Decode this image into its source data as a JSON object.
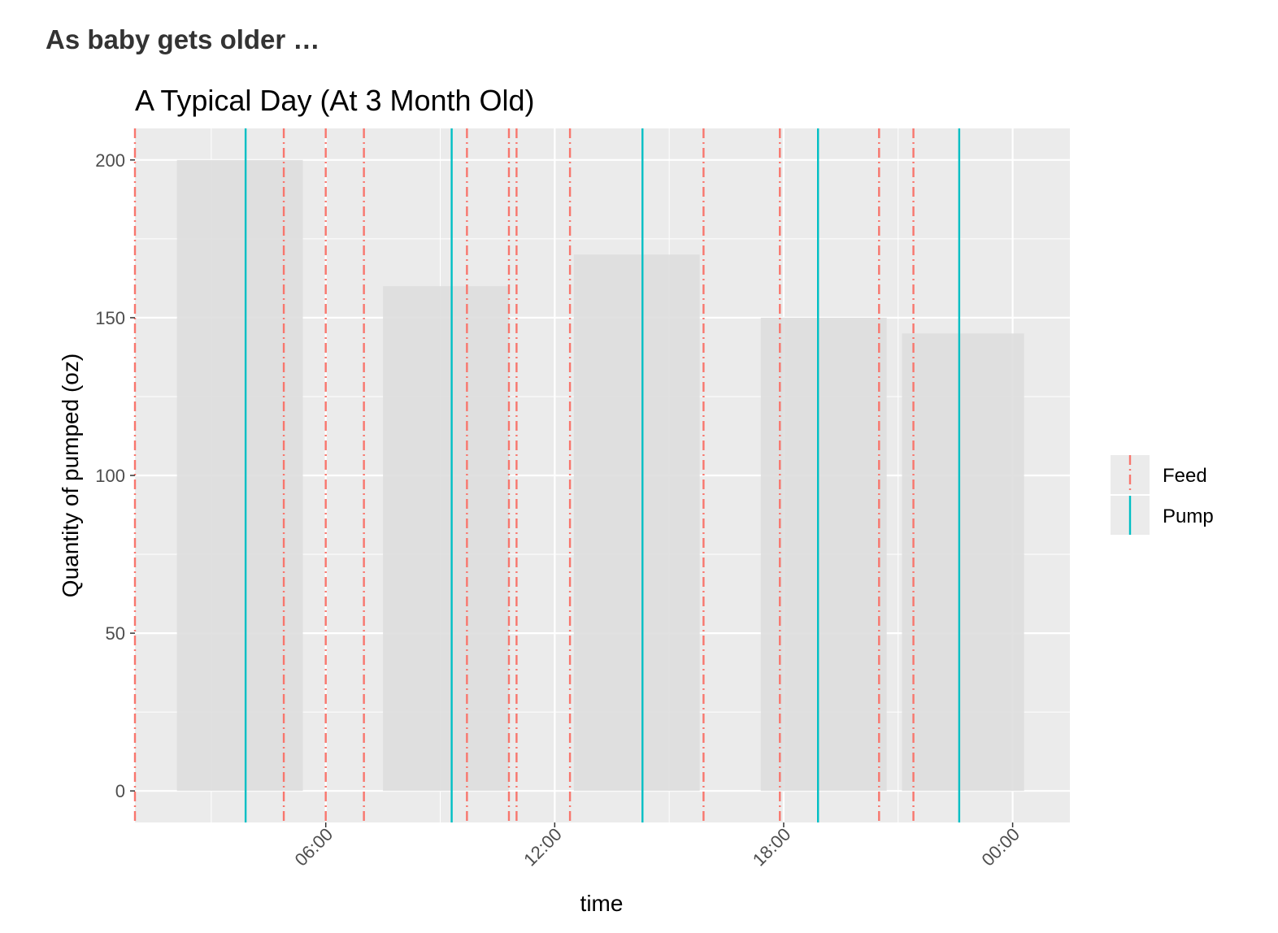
{
  "page": {
    "heading": "As baby gets older …"
  },
  "chart_data": {
    "type": "bar",
    "title": "A Typical Day (At 3 Month Old)",
    "xlabel": "time",
    "ylabel": "Quantity of pumped (oz)",
    "xlim": [
      "01:00",
      "25:30"
    ],
    "ylim": [
      -10,
      210
    ],
    "x_ticks": [
      {
        "hour": 6,
        "label": "06:00"
      },
      {
        "hour": 12,
        "label": "12:00"
      },
      {
        "hour": 18,
        "label": "18:00"
      },
      {
        "hour": 24,
        "label": "00:00"
      }
    ],
    "y_ticks": [
      0,
      50,
      100,
      150,
      200
    ],
    "grid": true,
    "legend_position": "right",
    "bars": [
      {
        "start": "02:06",
        "end": "05:24",
        "value": 200
      },
      {
        "start": "07:30",
        "end": "10:48",
        "value": 160
      },
      {
        "start": "12:30",
        "end": "15:48",
        "value": 170
      },
      {
        "start": "17:24",
        "end": "20:42",
        "value": 150
      },
      {
        "start": "21:06",
        "end": "24:18",
        "value": 145
      }
    ],
    "series": [
      {
        "name": "Feed",
        "color": "#F8766D",
        "linetype": "dashed",
        "times": [
          "01:00",
          "04:54",
          "06:00",
          "07:00",
          "09:42",
          "10:48",
          "11:00",
          "12:24",
          "15:54",
          "17:54",
          "20:30",
          "21:24"
        ]
      },
      {
        "name": "Pump",
        "color": "#00BFC4",
        "linetype": "solid",
        "times": [
          "03:54",
          "09:18",
          "14:18",
          "18:54",
          "22:36"
        ]
      }
    ],
    "bar_fill": "#DEDEDE",
    "panel_background": "#EBEBEB"
  }
}
